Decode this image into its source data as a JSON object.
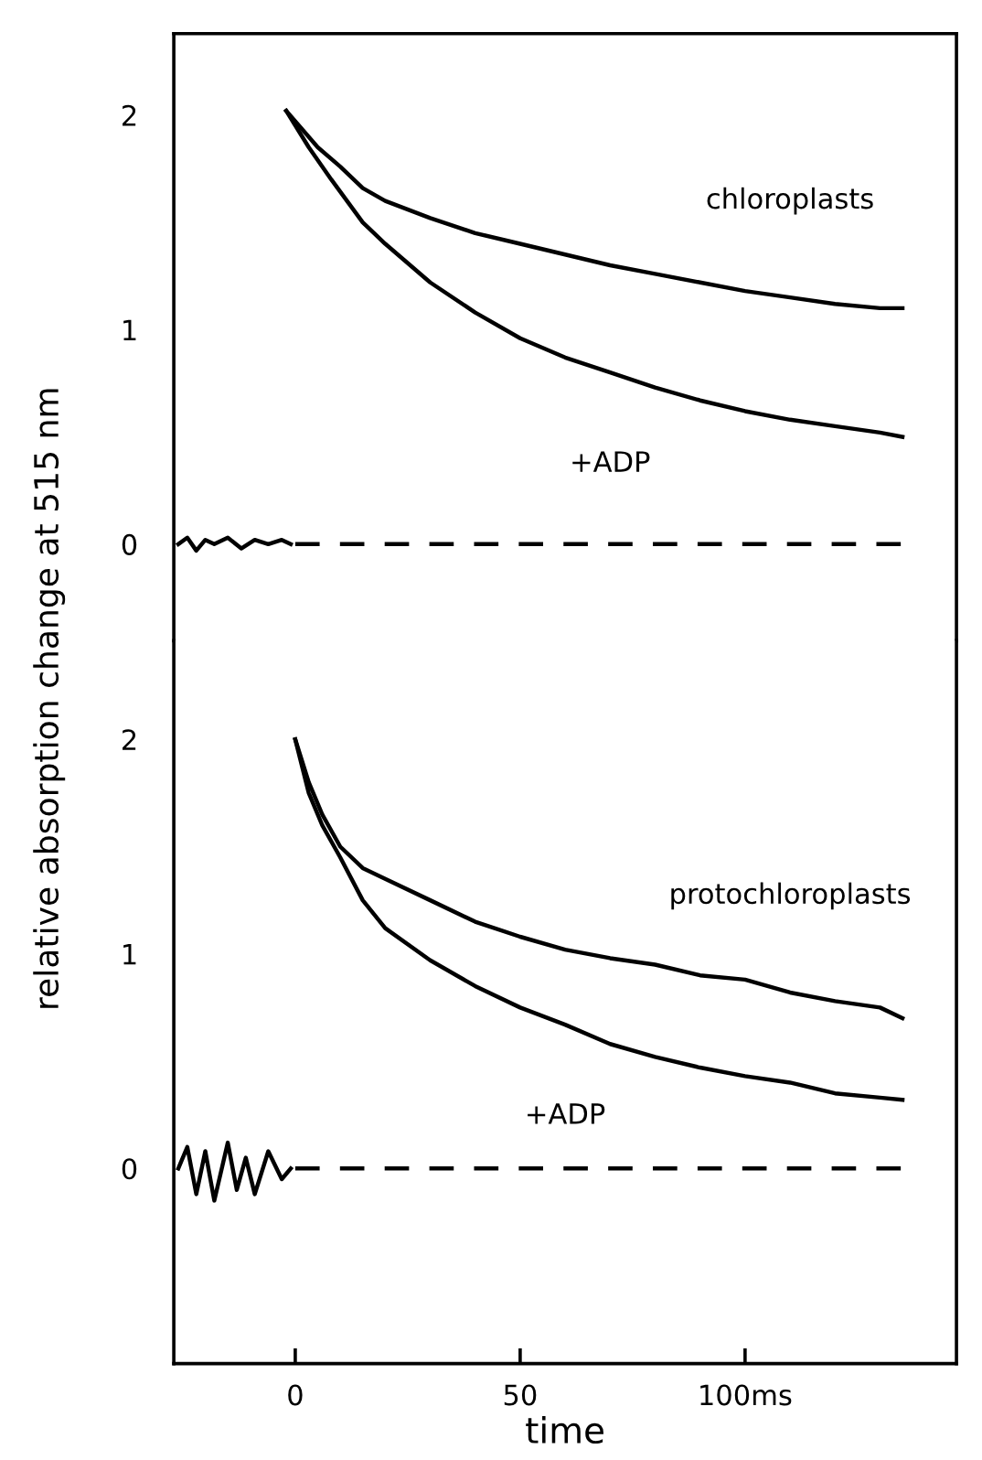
{
  "chart_data": [
    {
      "type": "line",
      "ylabel": "relative absorption change at 515 nm",
      "xlim": [
        -27,
        147
      ],
      "ylim": [
        -0.45,
        2.38
      ],
      "yticks": [
        0,
        1,
        2
      ],
      "tick_labels": "y",
      "grid": false,
      "annotations": [
        "chloroplasts",
        "+ADP"
      ],
      "series": [
        {
          "color": "#000000",
          "x": [
            -2,
            5,
            10,
            15,
            20,
            30,
            40,
            50,
            60,
            70,
            80,
            90,
            100,
            110,
            120,
            130,
            135
          ],
          "values": [
            2.02,
            1.85,
            1.76,
            1.66,
            1.6,
            1.52,
            1.45,
            1.4,
            1.35,
            1.3,
            1.26,
            1.22,
            1.18,
            1.15,
            1.12,
            1.1,
            1.1
          ]
        },
        {
          "color": "#000000",
          "x": [
            -2,
            3,
            8,
            15,
            20,
            30,
            40,
            50,
            60,
            70,
            80,
            90,
            100,
            110,
            120,
            130,
            135
          ],
          "values": [
            2.02,
            1.85,
            1.7,
            1.5,
            1.4,
            1.22,
            1.08,
            0.96,
            0.87,
            0.8,
            0.73,
            0.67,
            0.62,
            0.58,
            0.55,
            0.52,
            0.5
          ]
        },
        {
          "color": "#000000",
          "x": [
            -26,
            -24,
            -22,
            -20,
            -18,
            -15,
            -12,
            -9,
            -6,
            -3,
            -1
          ],
          "values": [
            0.0,
            0.03,
            -0.03,
            0.02,
            0.0,
            0.03,
            -0.02,
            0.02,
            0.0,
            0.02,
            0.0
          ]
        },
        {
          "color": "#000000",
          "line_style": "dashed",
          "x": [
            0,
            135
          ],
          "values": [
            0,
            0
          ]
        }
      ]
    },
    {
      "type": "line",
      "xlabel": "time",
      "xlim": [
        -27,
        147
      ],
      "ylim": [
        -0.91,
        2.46
      ],
      "xticks": [
        0,
        50,
        {
          "value": 100,
          "label": "100ms"
        }
      ],
      "yticks": [
        0,
        1,
        2
      ],
      "grid": false,
      "annotations": [
        "protochloroplasts",
        "+ADP"
      ],
      "series": [
        {
          "color": "#000000",
          "x": [
            0,
            3,
            6,
            10,
            15,
            20,
            30,
            40,
            50,
            60,
            70,
            80,
            90,
            100,
            110,
            120,
            130,
            135
          ],
          "values": [
            2.0,
            1.8,
            1.65,
            1.5,
            1.4,
            1.35,
            1.25,
            1.15,
            1.08,
            1.02,
            0.98,
            0.95,
            0.9,
            0.88,
            0.82,
            0.78,
            0.75,
            0.7
          ]
        },
        {
          "color": "#000000",
          "x": [
            0,
            3,
            6,
            10,
            15,
            20,
            30,
            40,
            50,
            60,
            70,
            80,
            90,
            100,
            110,
            120,
            130,
            135
          ],
          "values": [
            2.0,
            1.75,
            1.6,
            1.45,
            1.25,
            1.12,
            0.97,
            0.85,
            0.75,
            0.67,
            0.58,
            0.52,
            0.47,
            0.43,
            0.4,
            0.35,
            0.33,
            0.32
          ]
        },
        {
          "color": "#000000",
          "x": [
            -26,
            -24,
            -22,
            -20,
            -18,
            -15,
            -13,
            -11,
            -9,
            -6,
            -3,
            -1
          ],
          "values": [
            0.0,
            0.1,
            -0.12,
            0.08,
            -0.15,
            0.12,
            -0.1,
            0.05,
            -0.12,
            0.08,
            -0.05,
            0.0
          ]
        },
        {
          "color": "#000000",
          "line_style": "dashed",
          "x": [
            0,
            135
          ],
          "values": [
            0,
            0
          ]
        }
      ]
    }
  ]
}
